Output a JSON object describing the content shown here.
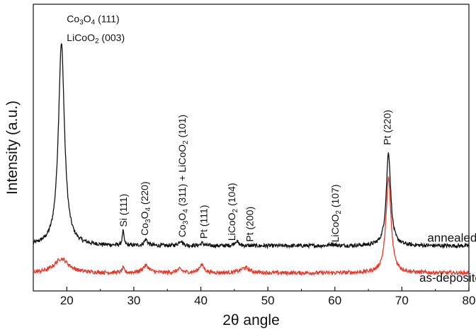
{
  "chart_data": {
    "type": "line",
    "xlabel": "2θ angle",
    "ylabel": "Intensity (a.u.)",
    "xlim": [
      15,
      80
    ],
    "x_ticks": [
      "20",
      "30",
      "40",
      "50",
      "60",
      "70",
      "80"
    ],
    "y_ticks_shown": false,
    "grid": false,
    "series": [
      {
        "name": "annealed",
        "color": "#111111",
        "baseline": 0.58,
        "peaks": [
          {
            "x": 19.2,
            "height": 3.95,
            "width": 0.55
          },
          {
            "x": 28.4,
            "height": 0.28,
            "width": 0.15
          },
          {
            "x": 31.8,
            "height": 0.12,
            "width": 0.3
          },
          {
            "x": 37.0,
            "height": 0.1,
            "width": 0.35
          },
          {
            "x": 40.2,
            "height": 0.05,
            "width": 0.3
          },
          {
            "x": 45.3,
            "height": 0.09,
            "width": 0.35
          },
          {
            "x": 59.6,
            "height": 0.04,
            "width": 0.35
          },
          {
            "x": 68.0,
            "height": 1.82,
            "width": 0.4
          }
        ]
      },
      {
        "name": "as-deposited",
        "color": "#e8392b",
        "baseline": 0.05,
        "peaks": [
          {
            "x": 19.2,
            "height": 0.28,
            "width": 1.3
          },
          {
            "x": 28.4,
            "height": 0.09,
            "width": 0.2
          },
          {
            "x": 31.8,
            "height": 0.14,
            "width": 0.6
          },
          {
            "x": 36.8,
            "height": 0.07,
            "width": 0.5
          },
          {
            "x": 40.1,
            "height": 0.16,
            "width": 0.45
          },
          {
            "x": 46.6,
            "height": 0.1,
            "width": 0.8
          },
          {
            "x": 68.0,
            "height": 1.85,
            "width": 0.45
          }
        ]
      }
    ],
    "annotations": [
      {
        "id": "co3o4-111",
        "parts": [
          [
            "Co",
            ""
          ],
          [
            "3",
            "sub"
          ],
          [
            "O",
            ""
          ],
          [
            "4",
            "sub"
          ],
          [
            " (111)",
            ""
          ]
        ],
        "x": 20.0,
        "y": 4.95,
        "rotate": false
      },
      {
        "id": "licoo2-003",
        "parts": [
          [
            "LiCoO",
            ""
          ],
          [
            "2",
            "sub"
          ],
          [
            " (003)",
            ""
          ]
        ],
        "x": 20.0,
        "y": 4.58,
        "rotate": false
      },
      {
        "id": "si-111",
        "parts": [
          [
            "Si (111)",
            ""
          ]
        ],
        "x": 28.4,
        "y": 0.95,
        "rotate": true
      },
      {
        "id": "co3o4-220",
        "parts": [
          [
            "Co",
            ""
          ],
          [
            "3",
            "sub"
          ],
          [
            "O",
            ""
          ],
          [
            "4",
            "sub"
          ],
          [
            " (220)",
            ""
          ]
        ],
        "x": 31.6,
        "y": 0.78,
        "rotate": true
      },
      {
        "id": "co3o4-311-licoo2-101",
        "parts": [
          [
            "Co",
            ""
          ],
          [
            "3",
            "sub"
          ],
          [
            "O",
            ""
          ],
          [
            "4",
            "sub"
          ],
          [
            " (311) + LiCoO",
            ""
          ],
          [
            "2",
            "sub"
          ],
          [
            " (101)",
            ""
          ]
        ],
        "x": 37.2,
        "y": 0.75,
        "rotate": true
      },
      {
        "id": "pt-111",
        "parts": [
          [
            "Pt (111)",
            ""
          ]
        ],
        "x": 40.4,
        "y": 0.72,
        "rotate": true
      },
      {
        "id": "licoo2-104",
        "parts": [
          [
            "LiCoO",
            ""
          ],
          [
            "2",
            "sub"
          ],
          [
            " (104)",
            ""
          ]
        ],
        "x": 44.6,
        "y": 0.68,
        "rotate": true
      },
      {
        "id": "pt-200",
        "parts": [
          [
            "Pt (200)",
            ""
          ]
        ],
        "x": 47.3,
        "y": 0.66,
        "rotate": true
      },
      {
        "id": "licoo2-107",
        "parts": [
          [
            "LiCoO",
            ""
          ],
          [
            "2",
            "sub"
          ],
          [
            " (107)",
            ""
          ]
        ],
        "x": 60.0,
        "y": 0.65,
        "rotate": true
      },
      {
        "id": "pt-220",
        "parts": [
          [
            "Pt (220)",
            ""
          ]
        ],
        "x": 67.8,
        "y": 2.55,
        "rotate": true
      }
    ],
    "series_labels": [
      {
        "id": "annealed",
        "text": "annealed",
        "x": 73.8,
        "y": 0.66
      },
      {
        "id": "as-deposited",
        "text": "as-deposited",
        "x": 72.6,
        "y": -0.12
      }
    ]
  }
}
